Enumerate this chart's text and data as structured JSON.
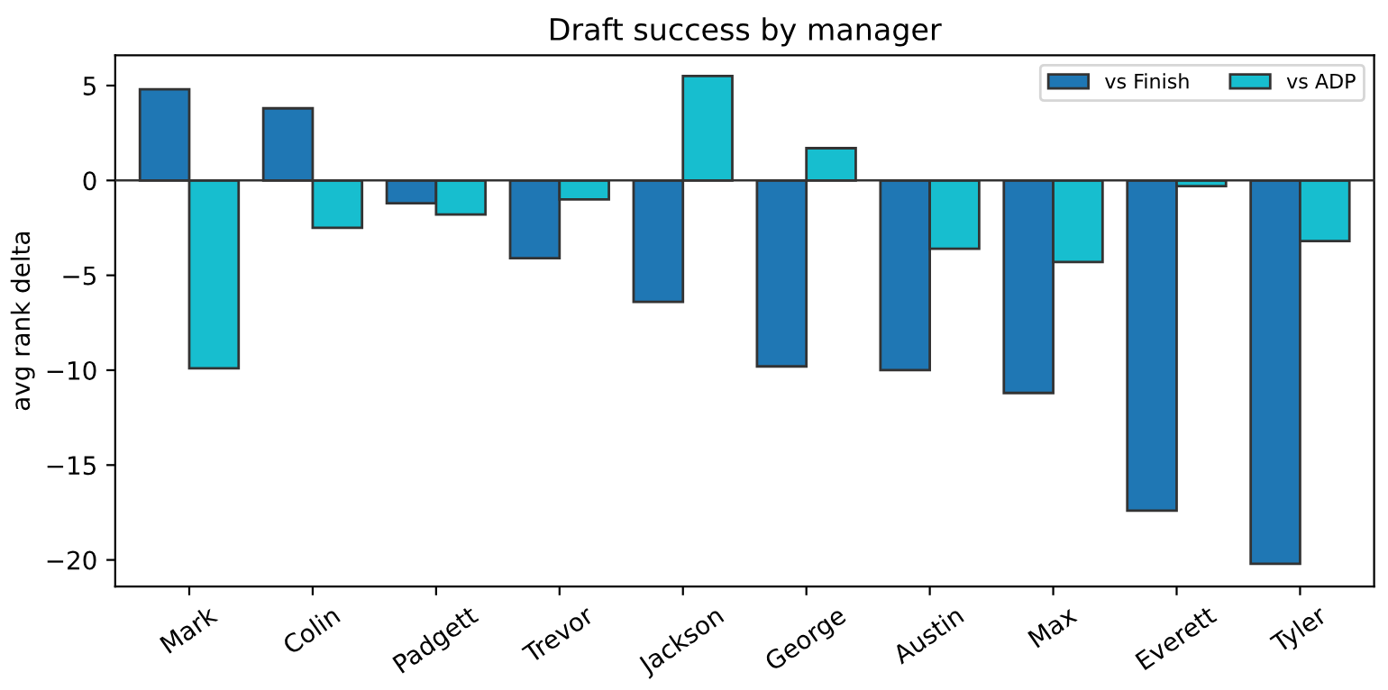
{
  "chart_data": {
    "type": "bar",
    "title": "Draft success by manager",
    "ylabel": "avg rank delta",
    "categories": [
      "Mark",
      "Colin",
      "Padgett",
      "Trevor",
      "Jackson",
      "George",
      "Austin",
      "Max",
      "Everett",
      "Tyler"
    ],
    "series": [
      {
        "name": "vs Finish",
        "color": "#1f77b4",
        "values": [
          4.8,
          3.8,
          -1.2,
          -4.1,
          -6.4,
          -9.8,
          -10.0,
          -11.2,
          -17.4,
          -20.2
        ]
      },
      {
        "name": "vs ADP",
        "color": "#17becf",
        "values": [
          -9.9,
          -2.5,
          -1.8,
          -1.0,
          5.5,
          1.7,
          -3.6,
          -4.3,
          -0.3,
          -3.2
        ]
      }
    ],
    "ref_lines": [
      {
        "axis": "y",
        "value": 0,
        "color": "#333333",
        "line_style": "solid"
      }
    ],
    "ylim": [
      -21.4,
      6.6
    ],
    "yticks": [
      {
        "value": -20,
        "label": "−20"
      },
      {
        "value": -15,
        "label": "−15"
      },
      {
        "value": -10,
        "label": "−10"
      },
      {
        "value": -5,
        "label": "−5"
      },
      0,
      5
    ],
    "grid": false,
    "legend": "top right"
  }
}
